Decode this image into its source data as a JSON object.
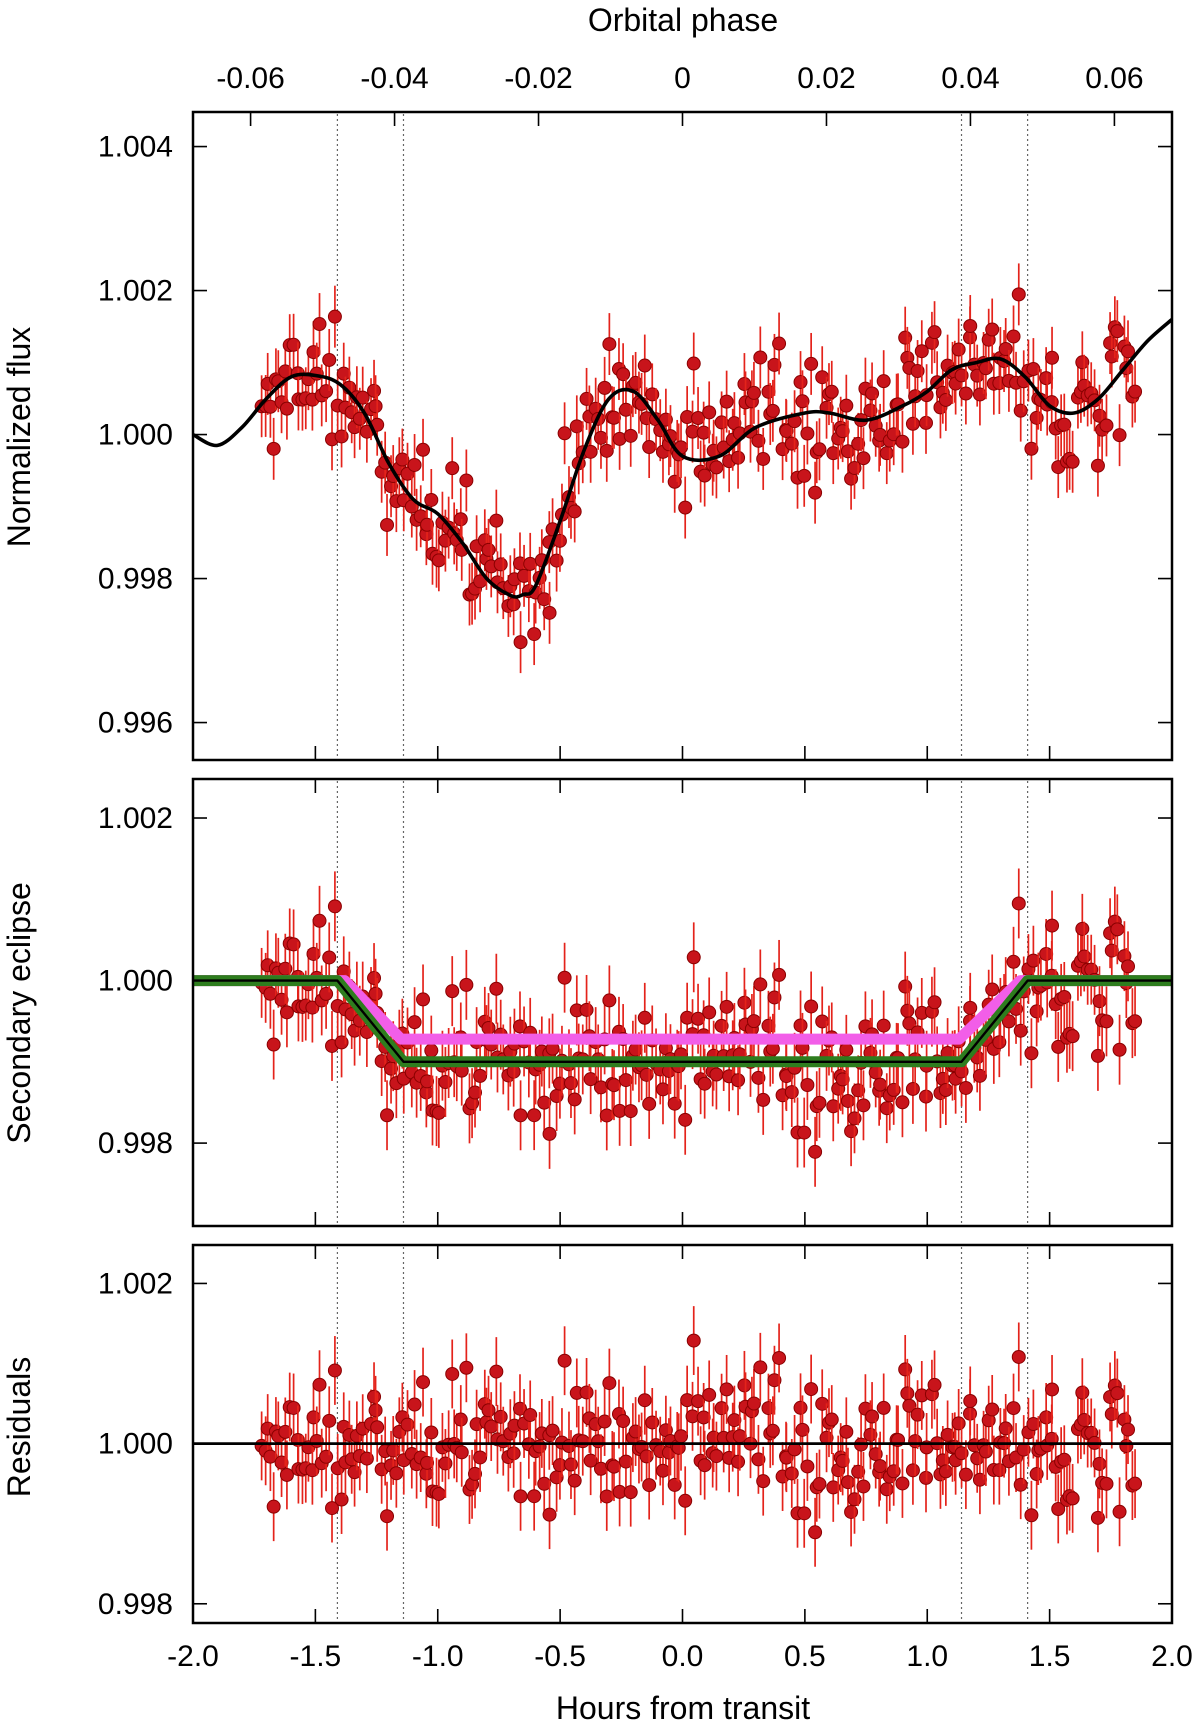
{
  "colors": {
    "points": "#c8141b",
    "errorbars": "#e4231b",
    "model": "#000000",
    "eclipse_model_pink": "#f25ee8",
    "eclipse_model_green": "#2e7d1e",
    "guides": "#666666"
  },
  "chart_data": {
    "type": "scatter",
    "x_axis": {
      "label": "Hours from transit",
      "range": [
        -2.0,
        2.0
      ],
      "ticks": [
        -2.0,
        -1.5,
        -1.0,
        -0.5,
        0.0,
        0.5,
        1.0,
        1.5,
        2.0
      ],
      "tick_labels": [
        "-2.0",
        "-1.5",
        "-1.0",
        "-0.5",
        "0.0",
        "0.5",
        "1.0",
        "1.5",
        "2.0"
      ]
    },
    "top_axis": {
      "label": "Orbital phase",
      "range": [
        -0.068,
        0.068
      ],
      "ticks": [
        -0.06,
        -0.04,
        -0.02,
        0,
        0.02,
        0.04,
        0.06
      ],
      "tick_labels": [
        "-0.06",
        "-0.04",
        "-0.02",
        "0",
        "0.02",
        "0.04",
        "0.06"
      ]
    },
    "contact_points_hours": [
      -1.41,
      -1.14,
      1.14,
      1.41
    ],
    "panels": [
      {
        "id": "normalized",
        "ylabel": "Normalized flux",
        "ylim": [
          0.99548,
          1.00448
        ],
        "yticks": [
          0.996,
          0.998,
          1.0,
          1.002,
          1.004
        ],
        "ytick_labels": [
          "0.996",
          "0.998",
          "1.000",
          "1.002",
          "1.004"
        ],
        "model_curve": {
          "x": [
            -2.0,
            -1.9,
            -1.8,
            -1.7,
            -1.6,
            -1.5,
            -1.4,
            -1.3,
            -1.2,
            -1.1,
            -1.0,
            -0.9,
            -0.8,
            -0.7,
            -0.65,
            -0.6,
            -0.5,
            -0.4,
            -0.3,
            -0.2,
            -0.1,
            0.0,
            0.15,
            0.3,
            0.5,
            0.6,
            0.75,
            0.9,
            1.0,
            1.1,
            1.2,
            1.3,
            1.4,
            1.5,
            1.6,
            1.7,
            1.8,
            1.9,
            2.0
          ],
          "y": [
            1.0,
            0.99985,
            1.0001,
            1.0005,
            1.0008,
            1.00082,
            1.0007,
            1.0003,
            0.9996,
            0.9991,
            0.9989,
            0.9985,
            0.998,
            0.99776,
            0.99778,
            0.9979,
            0.9988,
            0.9998,
            1.0005,
            1.0006,
            1.0002,
            0.9997,
            0.9997,
            1.0001,
            1.0003,
            1.0003,
            1.0002,
            1.0004,
            1.0006,
            1.0009,
            1.001,
            1.00105,
            1.0008,
            1.0004,
            1.0003,
            1.0005,
            1.0009,
            1.0013,
            1.0016
          ]
        }
      },
      {
        "id": "eclipse",
        "ylabel": "Secondary eclipse",
        "ylim": [
          0.99698,
          1.00248
        ],
        "yticks": [
          0.998,
          1.0,
          1.002
        ],
        "ytick_labels": [
          "0.998",
          "1.000",
          "1.002"
        ],
        "model_pink": {
          "x": [
            -2.0,
            -1.38,
            -1.15,
            1.13,
            1.38,
            2.0
          ],
          "y": [
            1.0,
            1.0,
            0.99928,
            0.99928,
            1.0,
            1.0
          ]
        },
        "model_green": {
          "x": [
            -2.0,
            -1.41,
            -1.14,
            1.14,
            1.41,
            2.0
          ],
          "y": [
            1.0,
            1.0,
            0.999,
            0.999,
            1.0,
            1.0
          ]
        }
      },
      {
        "id": "residuals",
        "ylabel": "Residuals",
        "ylim": [
          0.99776,
          1.00248
        ],
        "yticks": [
          0.998,
          1.0,
          1.002
        ],
        "ytick_labels": [
          "0.998",
          "1.000",
          "1.002"
        ],
        "reference_y": 1.0
      }
    ]
  }
}
